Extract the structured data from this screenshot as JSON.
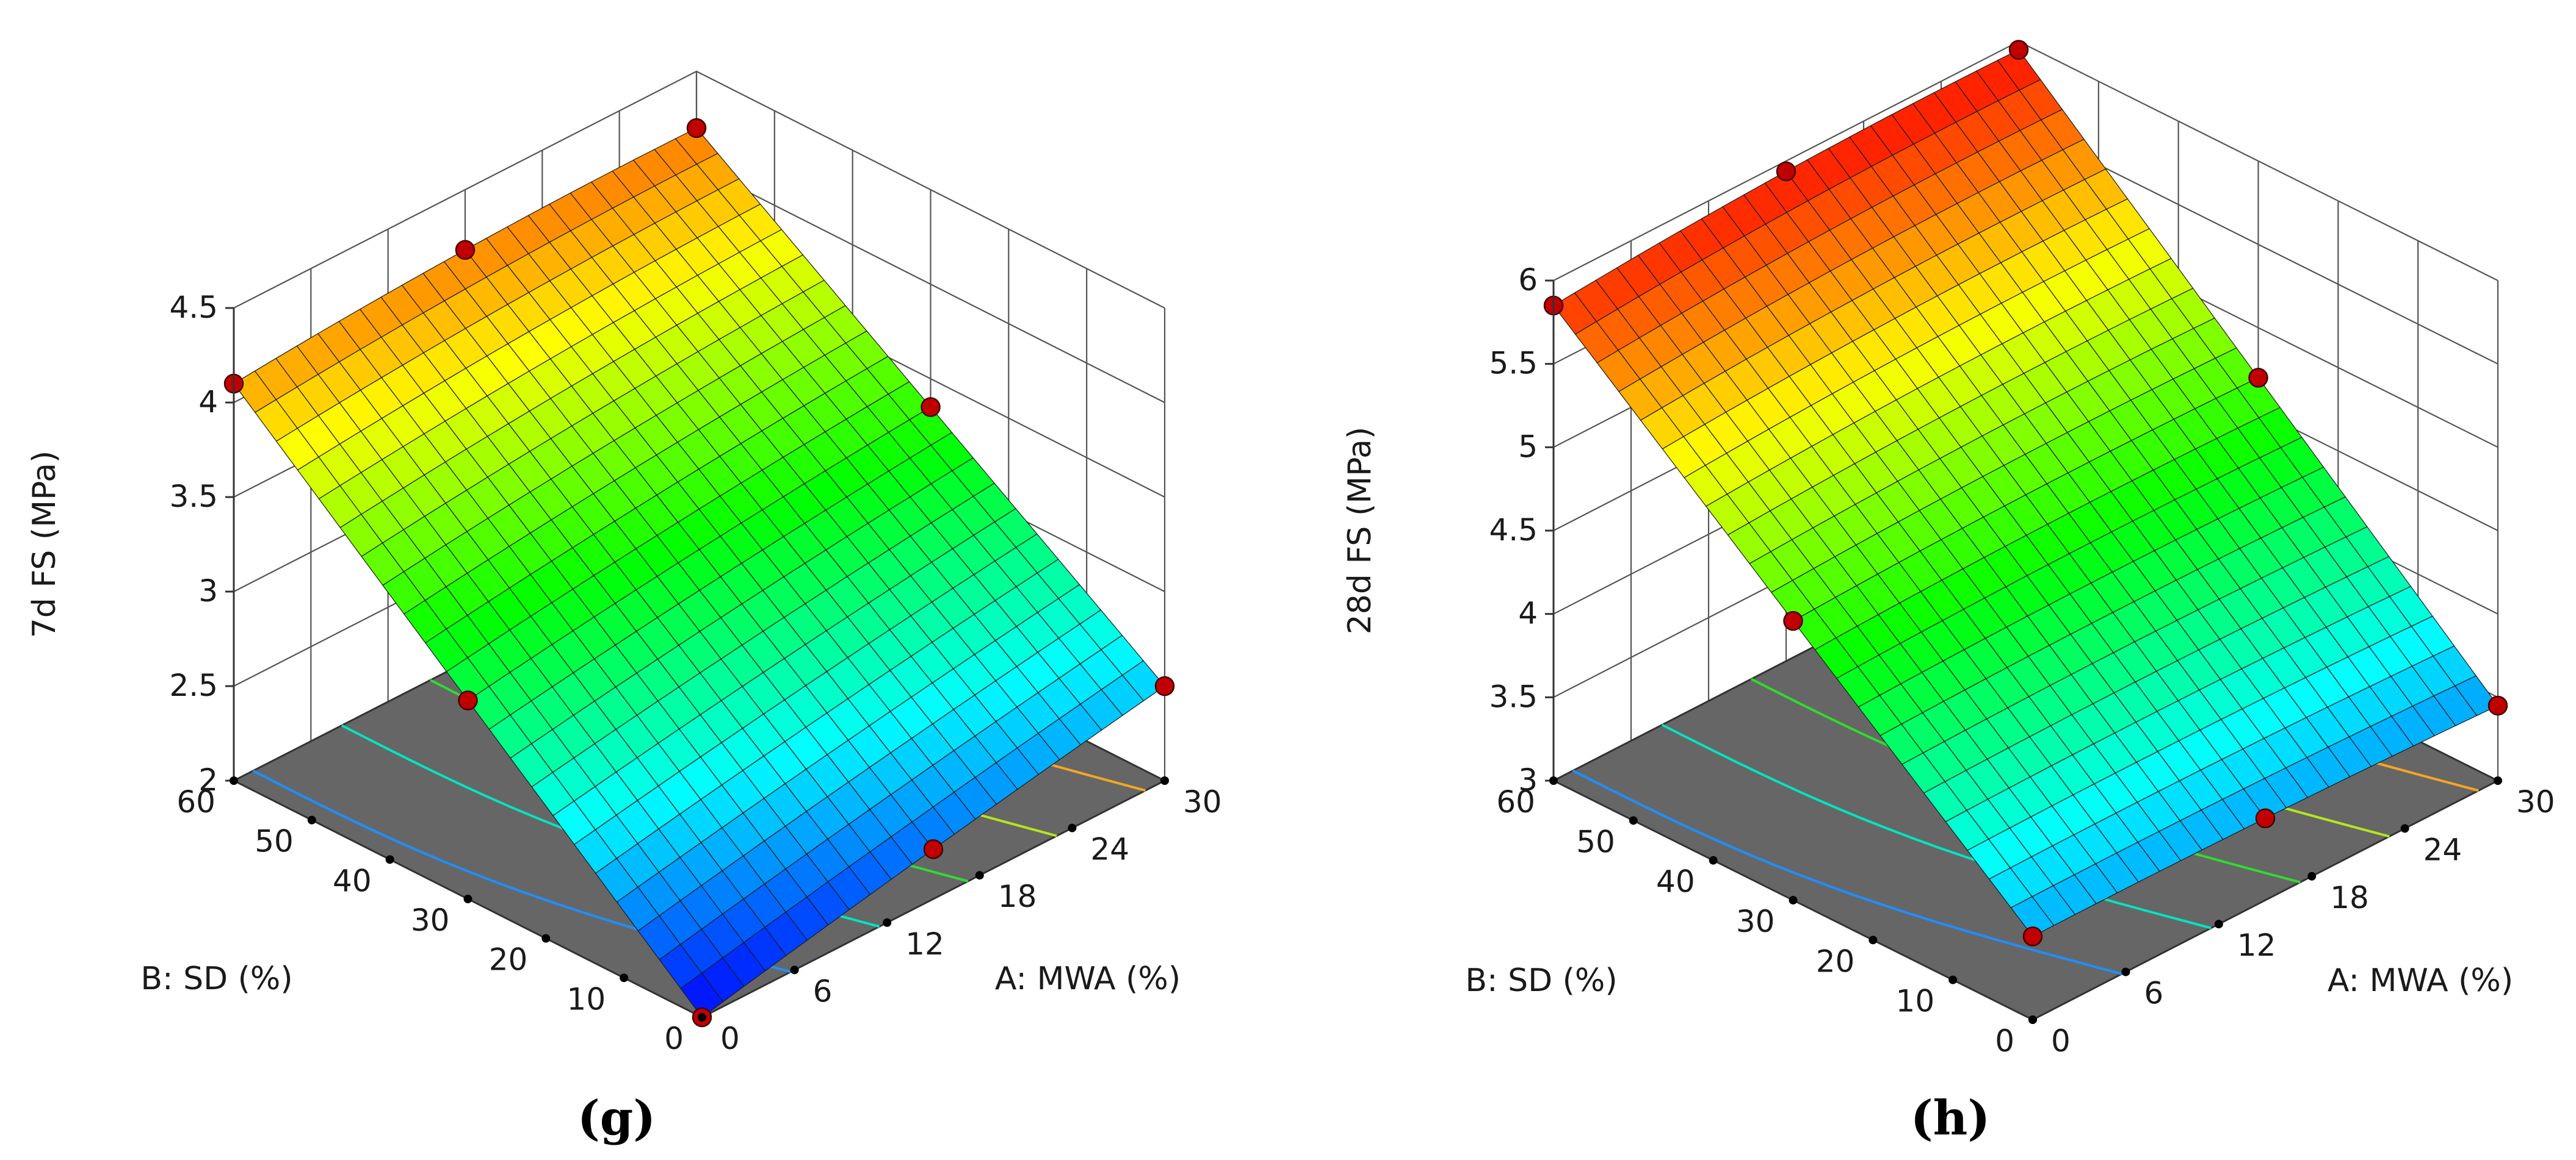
{
  "figure": {
    "panels": [
      "(g)",
      "(h)"
    ]
  },
  "chart_data": [
    {
      "type": "surface3d",
      "panel_label": "(g)",
      "zlabel": "7d FS (MPa)",
      "xlabel": "A: MWA (%)",
      "ylabel": "B: SD (%)",
      "xlim": [
        0,
        30
      ],
      "ylim": [
        0,
        60
      ],
      "zlim": [
        2,
        4.5
      ],
      "x_ticks": [
        "0",
        "6",
        "12",
        "18",
        "24",
        "30"
      ],
      "y_ticks": [
        "0",
        "10",
        "20",
        "30",
        "40",
        "50",
        "60"
      ],
      "z_ticks": [
        "2",
        "2.5",
        "3",
        "3.5",
        "4",
        "4.5"
      ],
      "surface_corners": {
        "A0_B0": 2.0,
        "A0_B60": 4.1,
        "A30_B0": 2.5,
        "A30_B60": 4.2
      },
      "colormap": [
        "#0000ff",
        "#00ffff",
        "#00ff00",
        "#ffff00",
        "#ff0000"
      ],
      "contour_colors": [
        "#1f8fff",
        "#00e5c0",
        "#2fdc2f",
        "#b5e61d",
        "#f5a623"
      ],
      "grid": true
    },
    {
      "type": "surface3d",
      "panel_label": "(h)",
      "zlabel": "28d FS (MPa)",
      "xlabel": "A: MWA (%)",
      "ylabel": "B: SD (%)",
      "xlim": [
        0,
        30
      ],
      "ylim": [
        0,
        60
      ],
      "zlim": [
        3,
        6
      ],
      "x_ticks": [
        "0",
        "6",
        "12",
        "18",
        "24",
        "30"
      ],
      "y_ticks": [
        "0",
        "10",
        "20",
        "30",
        "40",
        "50",
        "60"
      ],
      "z_ticks": [
        "3",
        "3.5",
        "4",
        "4.5",
        "5",
        "5.5",
        "6"
      ],
      "surface_corners": {
        "A0_B0": 3.5,
        "A0_B60": 5.85,
        "A30_B0": 3.45,
        "A30_B60": 5.95
      },
      "colormap": [
        "#0000ff",
        "#00ffff",
        "#00ff00",
        "#ffff00",
        "#ff0000"
      ],
      "contour_colors": [
        "#1f8fff",
        "#00e5c0",
        "#2fdc2f",
        "#b5e61d",
        "#f5a623"
      ],
      "grid": true
    }
  ]
}
